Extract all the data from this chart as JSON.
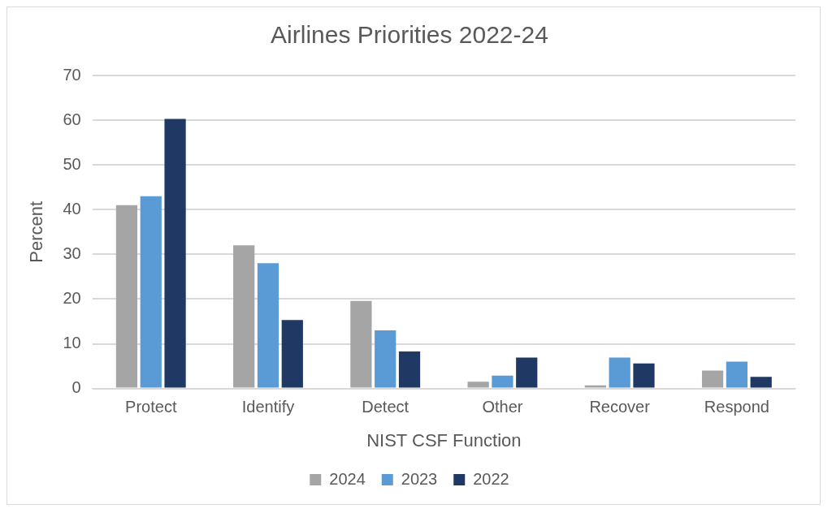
{
  "chart_data": {
    "type": "bar",
    "title": "Airlines Priorities 2022-24",
    "xlabel": "NIST CSF Function",
    "ylabel": "Percent",
    "categories": [
      "Protect",
      "Identify",
      "Detect",
      "Other",
      "Recover",
      "Respond"
    ],
    "series": [
      {
        "name": "2024",
        "color": "#a5a5a5",
        "values": [
          41,
          32,
          19.6,
          1.5,
          0.7,
          4
        ]
      },
      {
        "name": "2023",
        "color": "#5b9bd5",
        "values": [
          43,
          28,
          13,
          2.9,
          6.9,
          6
        ]
      },
      {
        "name": "2022",
        "color": "#203864",
        "values": [
          60.3,
          15.3,
          8.3,
          6.9,
          5.6,
          2.6
        ]
      }
    ],
    "ylim": [
      0,
      70
    ],
    "yticks": [
      0,
      10,
      20,
      30,
      40,
      50,
      60,
      70
    ],
    "grid": "y",
    "legend": "bottom"
  }
}
